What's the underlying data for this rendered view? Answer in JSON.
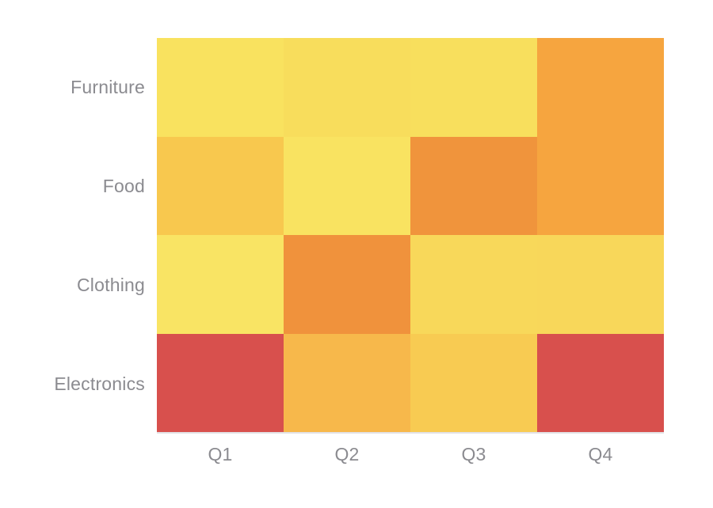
{
  "page": {
    "background_color": "#ffffff",
    "axis_label_color": "#8b8b90"
  },
  "chart_data": {
    "type": "heatmap",
    "title": "",
    "xlabel": "",
    "ylabel": "",
    "rows": [
      "Furniture",
      "Food",
      "Clothing",
      "Electronics"
    ],
    "columns": [
      "Q1",
      "Q2",
      "Q3",
      "Q4"
    ],
    "legend": "none",
    "gridlines": false,
    "colorbar": false,
    "color_scale": {
      "low_color": "#f9e464",
      "mid_color": "#f0943c",
      "high_color": "#d8504d",
      "description": "pale yellow = low intensity, orange = mid, red = high"
    },
    "cell_colors": [
      [
        "#f9e25f",
        "#f8dd5c",
        "#f8df5d",
        "#f6a53f"
      ],
      [
        "#f8c84e",
        "#f9e361",
        "#f0943c",
        "#f6a53f"
      ],
      [
        "#f9e464",
        "#f0923c",
        "#f8d85a",
        "#f8d75a"
      ],
      [
        "#d8504d",
        "#f7b84b",
        "#f8cb52",
        "#d8504d"
      ]
    ],
    "values_estimated_norm": [
      [
        0.08,
        0.14,
        0.12,
        0.55
      ],
      [
        0.32,
        0.08,
        0.62,
        0.55
      ],
      [
        0.06,
        0.63,
        0.2,
        0.2
      ],
      [
        1.0,
        0.42,
        0.28,
        1.0
      ]
    ]
  }
}
